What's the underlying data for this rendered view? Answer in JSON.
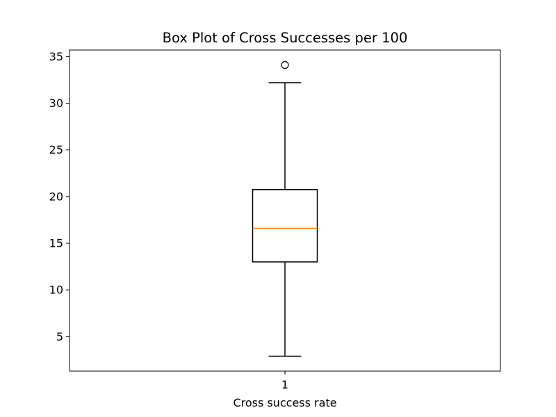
{
  "chart_data": {
    "type": "box",
    "title": "Box Plot of Cross Successes per 100",
    "xlabel": "Cross success rate",
    "ylabel": "",
    "categories": [
      "1"
    ],
    "ylim": [
      1.3,
      35.7
    ],
    "yticks": [
      5,
      10,
      15,
      20,
      25,
      30,
      35
    ],
    "grid": false,
    "boxes": [
      {
        "label": "1",
        "whisker_low": 2.9,
        "q1": 13.0,
        "median": 16.6,
        "q3": 20.75,
        "whisker_high": 32.2,
        "outliers": [
          34.1
        ]
      }
    ],
    "colors": {
      "box": "#000000",
      "median": "#ff7f0e"
    }
  }
}
